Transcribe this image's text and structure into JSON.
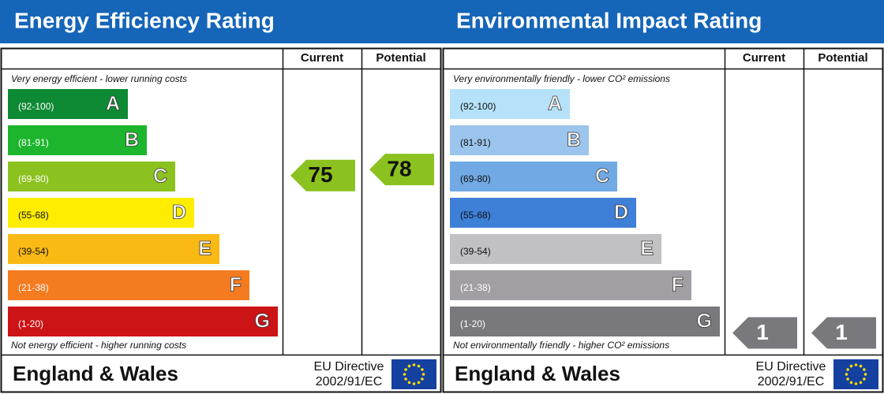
{
  "panels": [
    {
      "title": "Energy Efficiency Rating",
      "headers": [
        "Current",
        "Potential"
      ],
      "top_note": "Very energy efficient - lower running costs",
      "bands": [
        {
          "range": "(92-100)",
          "letter": "A"
        },
        {
          "range": "(81-91)",
          "letter": "B"
        },
        {
          "range": "(69-80)",
          "letter": "C"
        },
        {
          "range": "(55-68)",
          "letter": "D"
        },
        {
          "range": "(39-54)",
          "letter": "E"
        },
        {
          "range": "(21-38)",
          "letter": "F"
        },
        {
          "range": "(1-20)",
          "letter": "G"
        }
      ],
      "bottom_note": "Not energy efficient - higher running costs",
      "current": 75,
      "potential": 78,
      "footer": {
        "region": "England & Wales",
        "directive": "EU Directive",
        "code": "2002/91/EC"
      }
    },
    {
      "title": "Environmental Impact Rating",
      "headers": [
        "Current",
        "Potential"
      ],
      "top_note": "Very environmentally friendly - lower CO² emissions",
      "bands": [
        {
          "range": "(92-100)",
          "letter": "A"
        },
        {
          "range": "(81-91)",
          "letter": "B"
        },
        {
          "range": "(69-80)",
          "letter": "C"
        },
        {
          "range": "(55-68)",
          "letter": "D"
        },
        {
          "range": "(39-54)",
          "letter": "E"
        },
        {
          "range": "(21-38)",
          "letter": "F"
        },
        {
          "range": "(1-20)",
          "letter": "G"
        }
      ],
      "bottom_note": "Not environmentally friendly - higher CO² emissions",
      "current": 1,
      "potential": 1,
      "footer": {
        "region": "England & Wales",
        "directive": "EU Directive",
        "code": "2002/91/EC"
      }
    }
  ]
}
